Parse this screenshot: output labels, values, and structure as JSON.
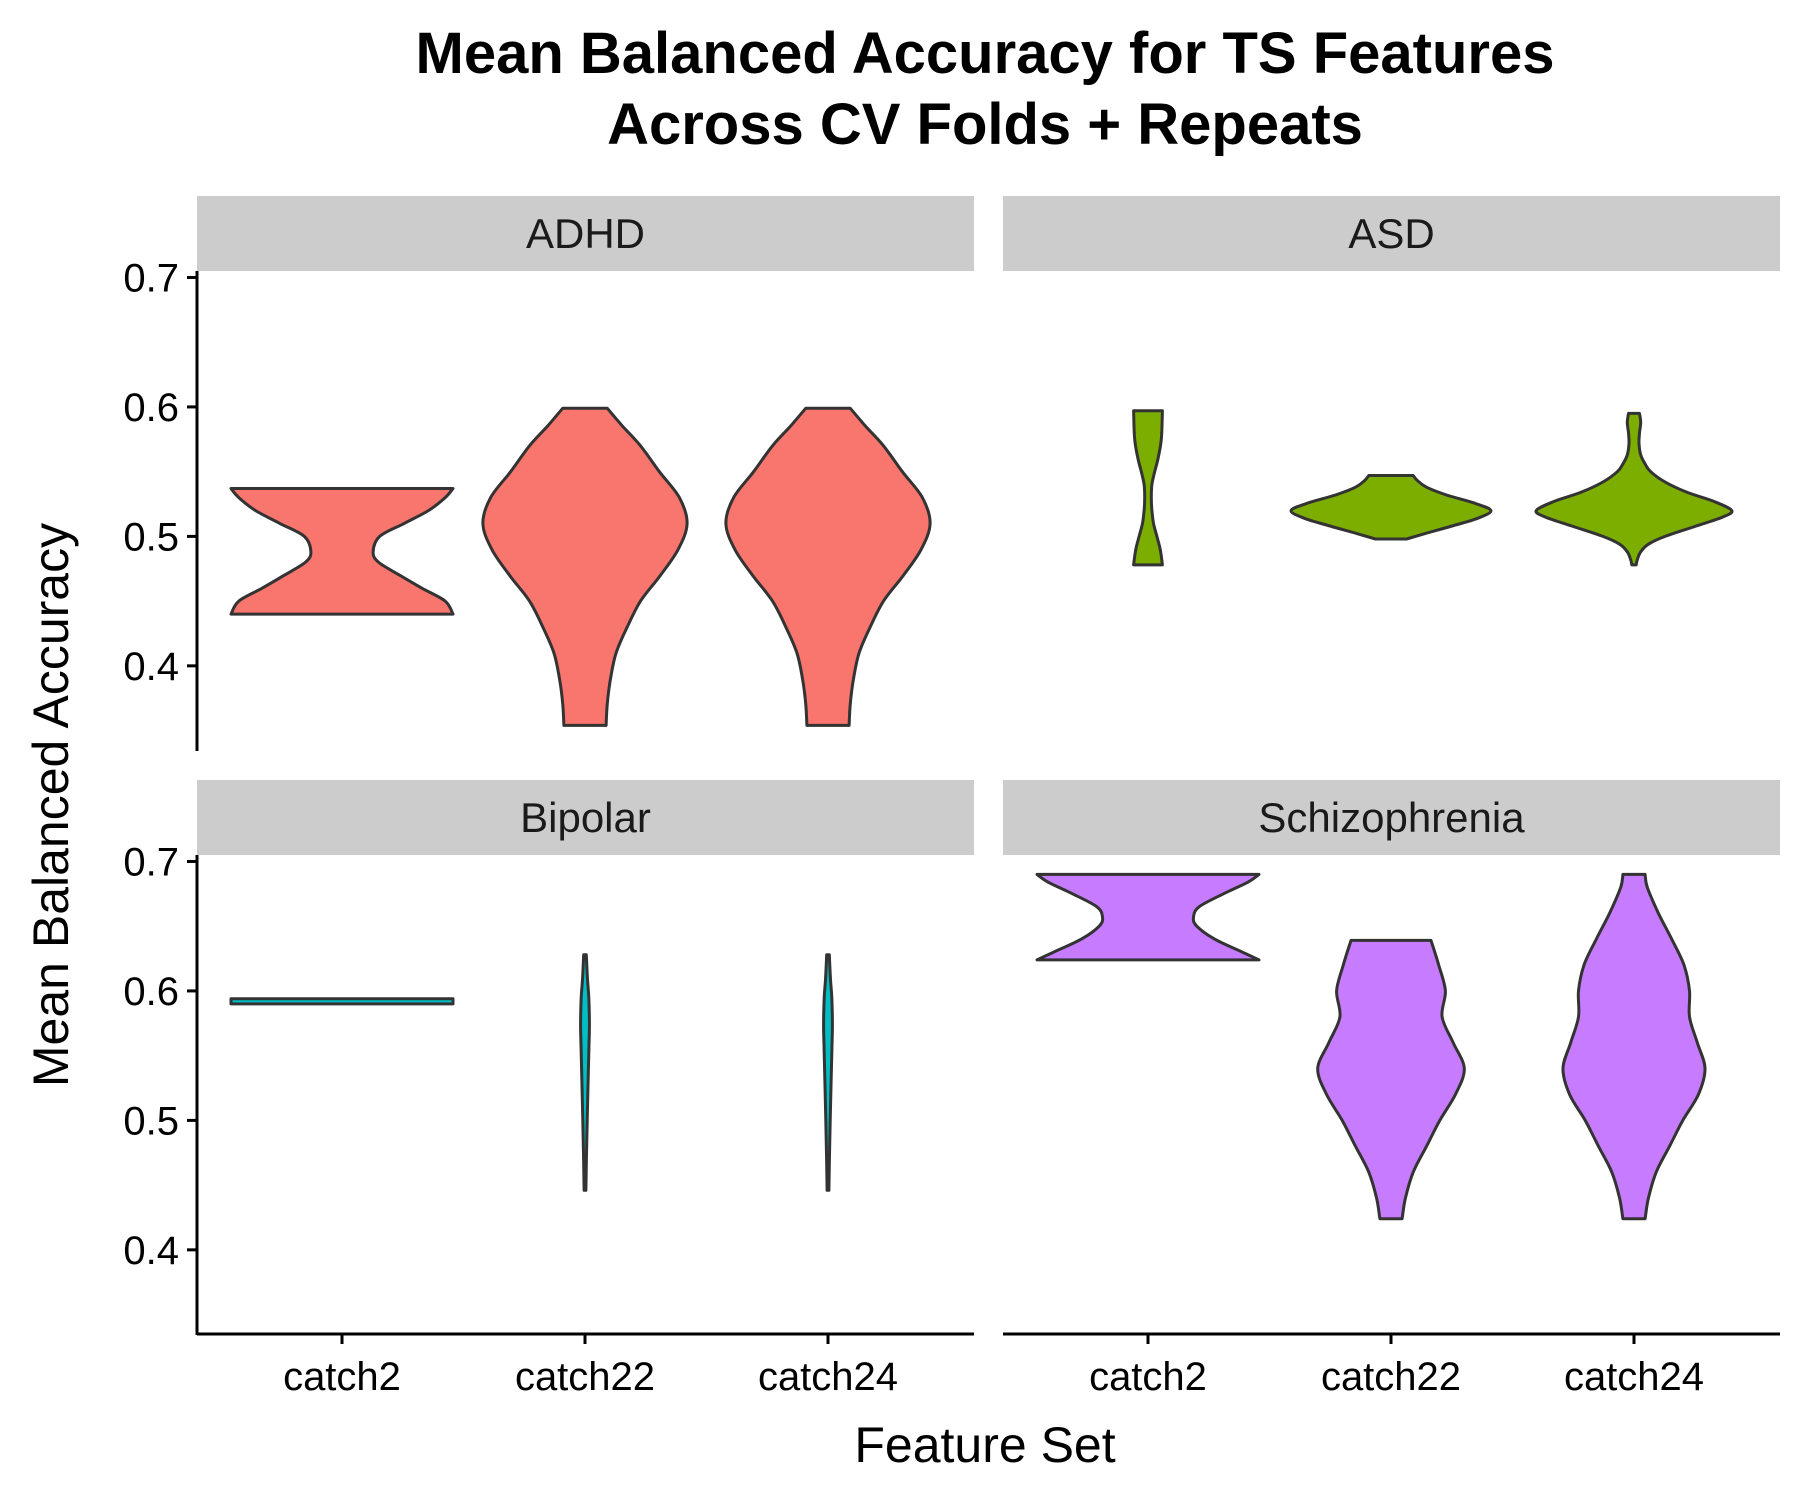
{
  "chart_data": {
    "type": "violin",
    "title": "Mean Balanced Accuracy for TS Features",
    "subtitle": "Across CV Folds + Repeats",
    "xlabel": "Feature Set",
    "ylabel": "Mean Balanced Accuracy",
    "categories": [
      "catch2",
      "catch22",
      "catch24"
    ],
    "yticks": [
      "0.4",
      "0.5",
      "0.6",
      "0.7"
    ],
    "ylim": [
      0.335,
      0.705
    ],
    "grid": false,
    "legend": "none",
    "panels": [
      {
        "name": "ADHD",
        "color": "#F8766D",
        "violins": [
          {
            "category": "catch2",
            "min": 0.44,
            "max": 0.537,
            "profile": [
              [
                0.44,
                1.0
              ],
              [
                0.45,
                0.93
              ],
              [
                0.46,
                0.72
              ],
              [
                0.47,
                0.52
              ],
              [
                0.48,
                0.33
              ],
              [
                0.488,
                0.28
              ],
              [
                0.5,
                0.34
              ],
              [
                0.51,
                0.56
              ],
              [
                0.52,
                0.78
              ],
              [
                0.53,
                0.93
              ],
              [
                0.537,
                1.0
              ]
            ]
          },
          {
            "category": "catch22",
            "min": 0.354,
            "max": 0.599,
            "profile": [
              [
                0.354,
                0.19
              ],
              [
                0.37,
                0.2
              ],
              [
                0.39,
                0.23
              ],
              [
                0.41,
                0.28
              ],
              [
                0.43,
                0.38
              ],
              [
                0.45,
                0.5
              ],
              [
                0.47,
                0.68
              ],
              [
                0.49,
                0.84
              ],
              [
                0.51,
                0.92
              ],
              [
                0.53,
                0.85
              ],
              [
                0.55,
                0.67
              ],
              [
                0.57,
                0.5
              ],
              [
                0.585,
                0.34
              ],
              [
                0.599,
                0.2
              ]
            ]
          },
          {
            "category": "catch24",
            "min": 0.354,
            "max": 0.599,
            "profile": [
              [
                0.354,
                0.19
              ],
              [
                0.37,
                0.2
              ],
              [
                0.39,
                0.23
              ],
              [
                0.41,
                0.28
              ],
              [
                0.43,
                0.38
              ],
              [
                0.45,
                0.5
              ],
              [
                0.47,
                0.68
              ],
              [
                0.49,
                0.84
              ],
              [
                0.51,
                0.92
              ],
              [
                0.53,
                0.85
              ],
              [
                0.55,
                0.67
              ],
              [
                0.57,
                0.5
              ],
              [
                0.585,
                0.34
              ],
              [
                0.599,
                0.2
              ]
            ]
          }
        ]
      },
      {
        "name": "ASD",
        "color": "#7CAE00",
        "violins": [
          {
            "category": "catch2",
            "min": 0.478,
            "max": 0.597,
            "profile": [
              [
                0.478,
                0.13
              ],
              [
                0.49,
                0.11
              ],
              [
                0.5,
                0.08
              ],
              [
                0.51,
                0.05
              ],
              [
                0.52,
                0.035
              ],
              [
                0.53,
                0.03
              ],
              [
                0.54,
                0.035
              ],
              [
                0.55,
                0.06
              ],
              [
                0.56,
                0.09
              ],
              [
                0.575,
                0.12
              ],
              [
                0.597,
                0.13
              ]
            ]
          },
          {
            "category": "catch22",
            "min": 0.498,
            "max": 0.547,
            "profile": [
              [
                0.498,
                0.14
              ],
              [
                0.502,
                0.3
              ],
              [
                0.508,
                0.55
              ],
              [
                0.514,
                0.78
              ],
              [
                0.52,
                0.9
              ],
              [
                0.526,
                0.74
              ],
              [
                0.532,
                0.5
              ],
              [
                0.538,
                0.32
              ],
              [
                0.543,
                0.24
              ],
              [
                0.547,
                0.2
              ]
            ]
          },
          {
            "category": "catch24",
            "min": 0.478,
            "max": 0.595,
            "profile": [
              [
                0.478,
                0.02
              ],
              [
                0.482,
                0.03
              ],
              [
                0.488,
                0.06
              ],
              [
                0.494,
                0.13
              ],
              [
                0.5,
                0.28
              ],
              [
                0.508,
                0.56
              ],
              [
                0.515,
                0.8
              ],
              [
                0.52,
                0.88
              ],
              [
                0.527,
                0.72
              ],
              [
                0.534,
                0.48
              ],
              [
                0.542,
                0.28
              ],
              [
                0.55,
                0.15
              ],
              [
                0.556,
                0.1
              ],
              [
                0.563,
                0.06
              ],
              [
                0.572,
                0.045
              ],
              [
                0.58,
                0.05
              ],
              [
                0.588,
                0.06
              ],
              [
                0.595,
                0.05
              ]
            ]
          }
        ]
      },
      {
        "name": "Bipolar",
        "color": "#00BFC4",
        "violins": [
          {
            "category": "catch2",
            "min": 0.59,
            "max": 0.594,
            "profile": [
              [
                0.59,
                1.0
              ],
              [
                0.592,
                1.0
              ],
              [
                0.594,
                1.0
              ]
            ]
          },
          {
            "category": "catch22",
            "min": 0.446,
            "max": 0.628,
            "profile": [
              [
                0.446,
                0.008
              ],
              [
                0.47,
                0.013
              ],
              [
                0.5,
                0.02
              ],
              [
                0.53,
                0.028
              ],
              [
                0.555,
                0.035
              ],
              [
                0.575,
                0.04
              ],
              [
                0.595,
                0.034
              ],
              [
                0.61,
                0.022
              ],
              [
                0.628,
                0.012
              ]
            ]
          },
          {
            "category": "catch24",
            "min": 0.446,
            "max": 0.628,
            "profile": [
              [
                0.446,
                0.008
              ],
              [
                0.47,
                0.013
              ],
              [
                0.5,
                0.02
              ],
              [
                0.53,
                0.028
              ],
              [
                0.555,
                0.035
              ],
              [
                0.575,
                0.04
              ],
              [
                0.595,
                0.034
              ],
              [
                0.61,
                0.022
              ],
              [
                0.628,
                0.012
              ]
            ]
          }
        ]
      },
      {
        "name": "Schizophrenia",
        "color": "#C77CFF",
        "violins": [
          {
            "category": "catch2",
            "min": 0.624,
            "max": 0.69,
            "profile": [
              [
                0.624,
                1.0
              ],
              [
                0.63,
                0.85
              ],
              [
                0.64,
                0.6
              ],
              [
                0.65,
                0.44
              ],
              [
                0.657,
                0.41
              ],
              [
                0.665,
                0.46
              ],
              [
                0.675,
                0.68
              ],
              [
                0.684,
                0.9
              ],
              [
                0.69,
                1.0
              ]
            ]
          },
          {
            "category": "catch22",
            "min": 0.424,
            "max": 0.639,
            "profile": [
              [
                0.424,
                0.1
              ],
              [
                0.44,
                0.13
              ],
              [
                0.46,
                0.2
              ],
              [
                0.48,
                0.32
              ],
              [
                0.5,
                0.44
              ],
              [
                0.52,
                0.58
              ],
              [
                0.54,
                0.66
              ],
              [
                0.56,
                0.56
              ],
              [
                0.58,
                0.46
              ],
              [
                0.6,
                0.49
              ],
              [
                0.62,
                0.43
              ],
              [
                0.639,
                0.36
              ]
            ]
          },
          {
            "category": "catch24",
            "min": 0.424,
            "max": 0.69,
            "profile": [
              [
                0.424,
                0.1
              ],
              [
                0.44,
                0.13
              ],
              [
                0.46,
                0.2
              ],
              [
                0.48,
                0.32
              ],
              [
                0.5,
                0.44
              ],
              [
                0.52,
                0.58
              ],
              [
                0.54,
                0.64
              ],
              [
                0.56,
                0.57
              ],
              [
                0.58,
                0.5
              ],
              [
                0.6,
                0.5
              ],
              [
                0.62,
                0.45
              ],
              [
                0.64,
                0.34
              ],
              [
                0.66,
                0.22
              ],
              [
                0.68,
                0.12
              ],
              [
                0.69,
                0.1
              ]
            ]
          }
        ]
      }
    ]
  }
}
